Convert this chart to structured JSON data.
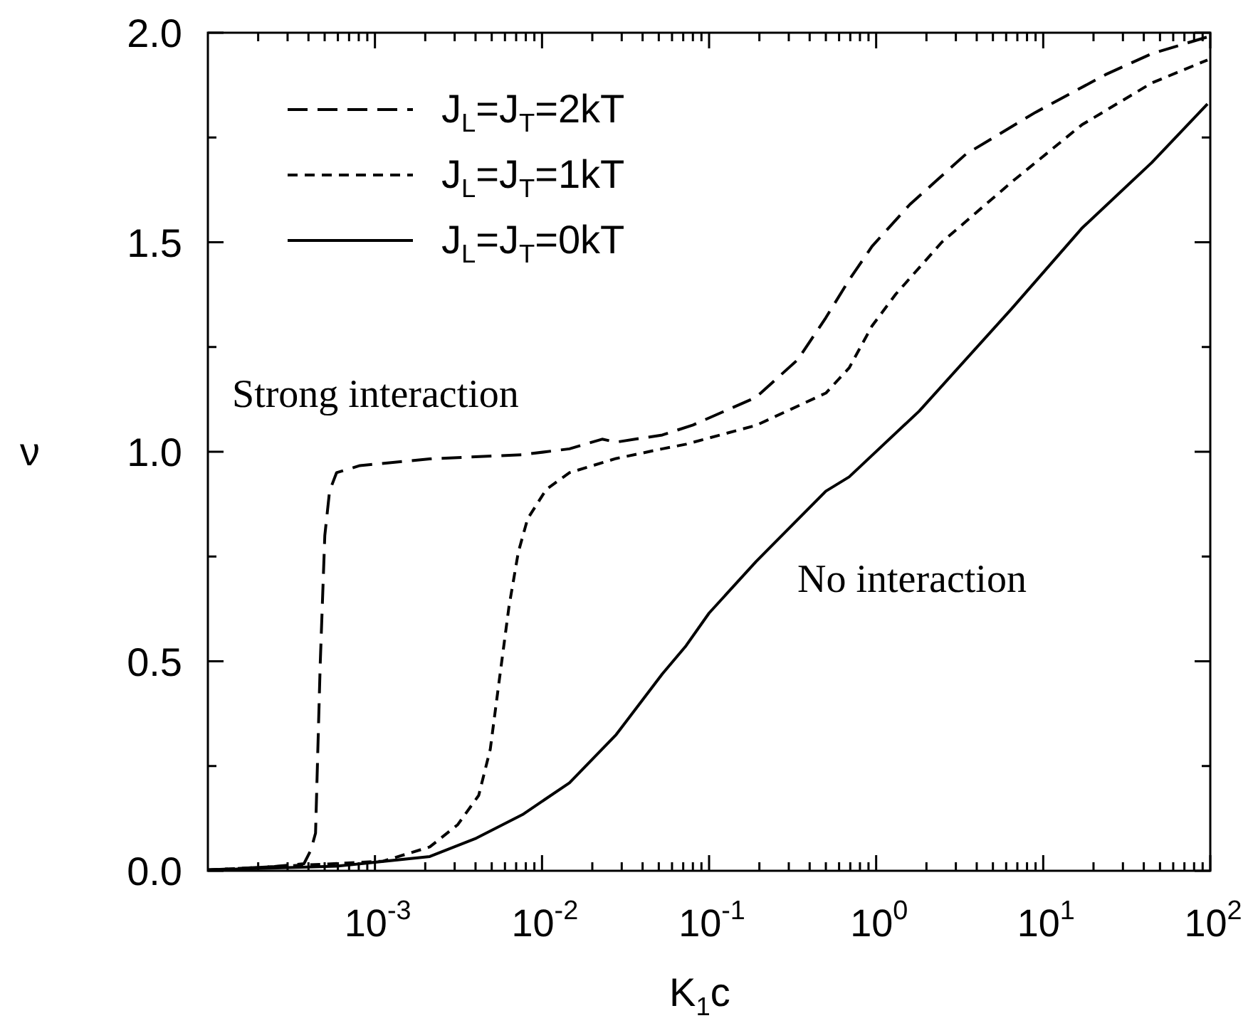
{
  "chart_data": {
    "type": "line",
    "xlabel": "K$_{1}$c",
    "ylabel": "ν",
    "log": "x",
    "legend": "top left",
    "grid": false,
    "marker": "none",
    "xlim": [
      0.0001,
      100
    ],
    "xticks": [
      {
        "value": 0.0002,
        "label": null
      },
      {
        "value": 0.0003,
        "label": null
      },
      {
        "value": 0.0004,
        "label": null
      },
      {
        "value": 0.0005,
        "label": null
      },
      {
        "value": 0.0006,
        "label": null
      },
      {
        "value": 0.0007,
        "label": null
      },
      {
        "value": 0.0008,
        "label": null
      },
      {
        "value": 0.0009,
        "label": null
      },
      {
        "value": 0.001,
        "label": "10$^{-3}$"
      },
      {
        "value": 0.002,
        "label": null
      },
      {
        "value": 0.003,
        "label": null
      },
      {
        "value": 0.004,
        "label": null
      },
      {
        "value": 0.005,
        "label": null
      },
      {
        "value": 0.006,
        "label": null
      },
      {
        "value": 0.007,
        "label": null
      },
      {
        "value": 0.008,
        "label": null
      },
      {
        "value": 0.009,
        "label": null
      },
      {
        "value": 0.01,
        "label": "10$^{-2}$"
      },
      {
        "value": 0.02,
        "label": null
      },
      {
        "value": 0.03,
        "label": null
      },
      {
        "value": 0.04,
        "label": null
      },
      {
        "value": 0.05,
        "label": null
      },
      {
        "value": 0.06,
        "label": null
      },
      {
        "value": 0.07,
        "label": null
      },
      {
        "value": 0.08,
        "label": null
      },
      {
        "value": 0.09,
        "label": null
      },
      {
        "value": 0.1,
        "label": "10$^{-1}$"
      },
      {
        "value": 0.2,
        "label": null
      },
      {
        "value": 0.3,
        "label": null
      },
      {
        "value": 0.4,
        "label": null
      },
      {
        "value": 0.5,
        "label": null
      },
      {
        "value": 0.6,
        "label": null
      },
      {
        "value": 0.7,
        "label": null
      },
      {
        "value": 0.8,
        "label": null
      },
      {
        "value": 0.9,
        "label": null
      },
      {
        "value": 1,
        "label": "10$^{0}$"
      },
      {
        "value": 2,
        "label": null
      },
      {
        "value": 3,
        "label": null
      },
      {
        "value": 4,
        "label": null
      },
      {
        "value": 5,
        "label": null
      },
      {
        "value": 6,
        "label": null
      },
      {
        "value": 7,
        "label": null
      },
      {
        "value": 8,
        "label": null
      },
      {
        "value": 9,
        "label": null
      },
      {
        "value": 10,
        "label": "10$^{1}$"
      },
      {
        "value": 20,
        "label": null
      },
      {
        "value": 30,
        "label": null
      },
      {
        "value": 40,
        "label": null
      },
      {
        "value": 50,
        "label": null
      },
      {
        "value": 60,
        "label": null
      },
      {
        "value": 70,
        "label": null
      },
      {
        "value": 80,
        "label": null
      },
      {
        "value": 90,
        "label": null
      },
      {
        "value": 100,
        "label": "10$^{2}$"
      }
    ],
    "ylim": [
      0,
      2
    ],
    "yticks": [
      {
        "value": 0,
        "label": "0.0"
      },
      {
        "value": 0.25,
        "label": null
      },
      {
        "value": 0.5,
        "label": "0.5"
      },
      {
        "value": 0.75,
        "label": null
      },
      {
        "value": 1,
        "label": "1.0"
      },
      {
        "value": 1.25,
        "label": null
      },
      {
        "value": 1.5,
        "label": "1.5"
      },
      {
        "value": 1.75,
        "label": null
      },
      {
        "value": 2,
        "label": "2.0"
      }
    ],
    "annotations": [
      "Strong interaction",
      "No interaction"
    ],
    "series": [
      {
        "name": "J$_{L}$=J$_{T}$=2kT",
        "color": "#000000",
        "line_style": "dashed",
        "x": [
          0.0001,
          0.00025,
          0.000376,
          0.000414,
          0.000441,
          0.00047,
          0.000501,
          0.000535,
          0.000589,
          0.000813,
          0.00213,
          0.00764,
          0.0146,
          0.0229,
          0.0278,
          0.0525,
          0.0802,
          0.191,
          0.34,
          0.5,
          0.689,
          0.944,
          1.59,
          3.44,
          8.99,
          23.6,
          44.6,
          96.2
        ],
        "values": [
          0.002,
          0.01,
          0.017,
          0.05,
          0.09,
          0.49,
          0.8,
          0.906,
          0.95,
          0.967,
          0.983,
          0.993,
          1.007,
          1.03,
          1.023,
          1.04,
          1.064,
          1.13,
          1.22,
          1.32,
          1.41,
          1.49,
          1.59,
          1.71,
          1.81,
          1.9,
          1.95,
          1.99
        ]
      },
      {
        "name": "J$_{L}$=J$_{T}$=1kT",
        "color": "#000000",
        "line_style": "dashed",
        "x": [
          0.0001,
          0.00112,
          0.00213,
          0.00313,
          0.00418,
          0.0049,
          0.00557,
          0.00634,
          0.00721,
          0.0082,
          0.0106,
          0.0146,
          0.0278,
          0.0525,
          0.0728,
          0.191,
          0.5,
          0.689,
          0.944,
          1.31,
          2.47,
          6.49,
          17,
          44.6,
          96.2
        ],
        "values": [
          0.002,
          0.023,
          0.057,
          0.11,
          0.18,
          0.29,
          0.46,
          0.63,
          0.76,
          0.84,
          0.91,
          0.95,
          0.984,
          1.007,
          1.018,
          1.063,
          1.14,
          1.2,
          1.3,
          1.376,
          1.5,
          1.644,
          1.78,
          1.88,
          1.935
        ]
      },
      {
        "name": "J$_{L}$=J$_{T}$=0kT",
        "color": "#000000",
        "line_style": "solid",
        "x": [
          0.0001,
          0.000589,
          0.00213,
          0.00405,
          0.00764,
          0.0146,
          0.0278,
          0.0525,
          0.0728,
          0.1,
          0.191,
          0.5,
          0.689,
          1.81,
          6.49,
          17,
          44.6,
          96.2
        ],
        "values": [
          0.002,
          0.011,
          0.034,
          0.078,
          0.134,
          0.21,
          0.325,
          0.47,
          0.537,
          0.615,
          0.738,
          0.906,
          0.94,
          1.097,
          1.342,
          1.533,
          1.69,
          1.83
        ]
      }
    ]
  }
}
